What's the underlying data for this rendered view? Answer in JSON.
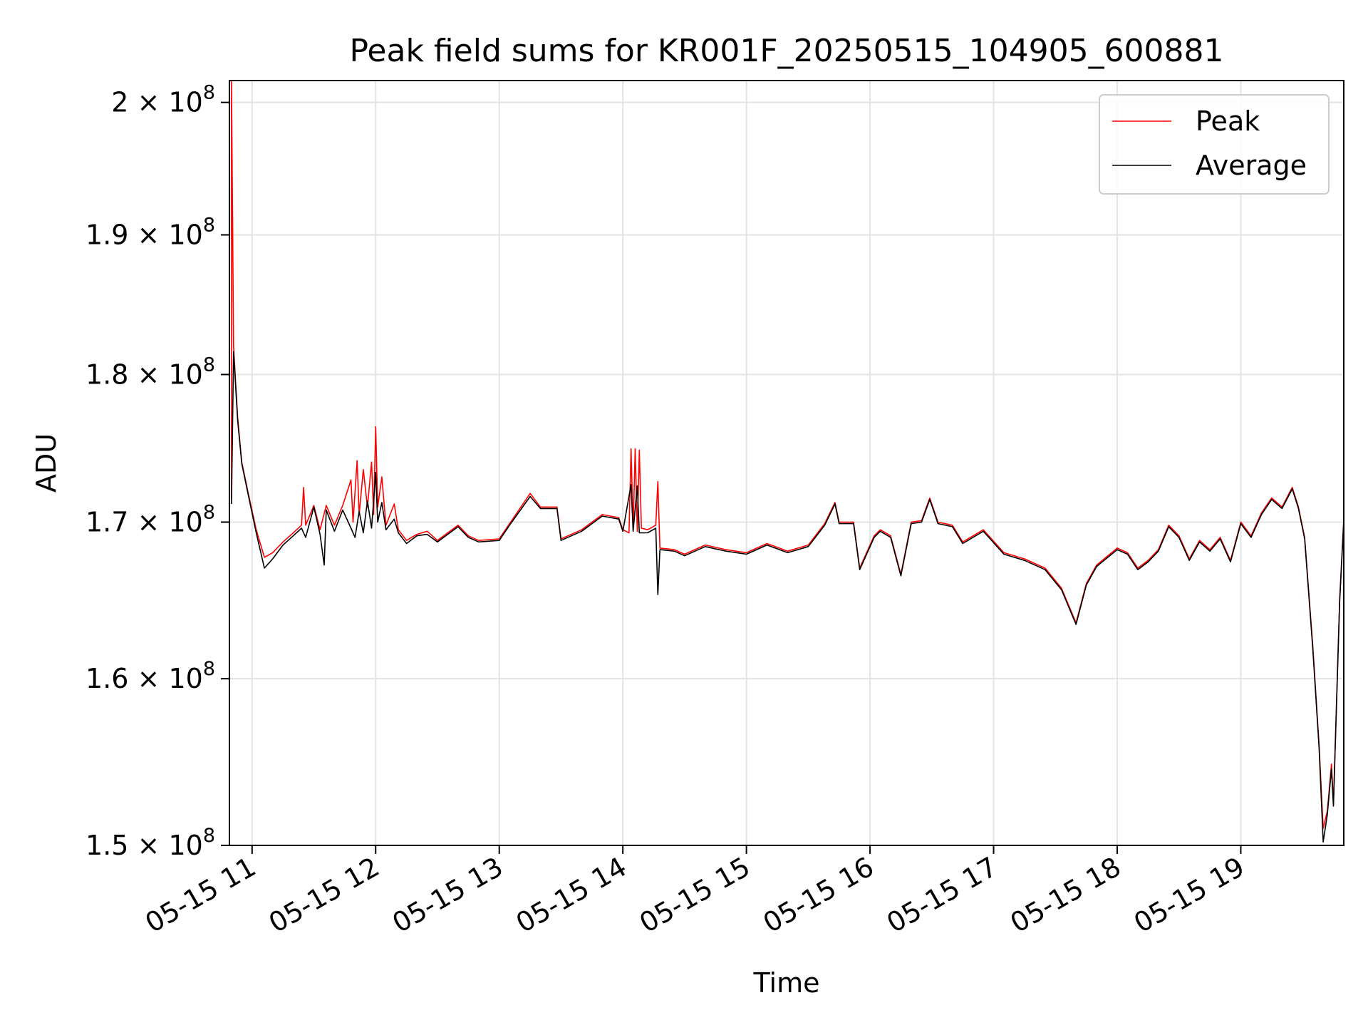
{
  "chart_data": {
    "type": "line",
    "title": "Peak field sums for KR001F_20250515_104905_600881",
    "xlabel": "Time",
    "ylabel": "ADU",
    "yscale": "log",
    "ylim": [
      150000000,
      201700000
    ],
    "xlim": [
      "2025-05-15 10:49",
      "2025-05-15 19:50"
    ],
    "grid": true,
    "legend_position": "top-right",
    "x_ticks": [
      "05-15 11",
      "05-15 12",
      "05-15 13",
      "05-15 14",
      "05-15 15",
      "05-15 16",
      "05-15 17",
      "05-15 18",
      "05-15 19"
    ],
    "y_ticks": [
      {
        "value": 150000000,
        "mantissa": "1.5"
      },
      {
        "value": 160000000,
        "mantissa": "1.6"
      },
      {
        "value": 170000000,
        "mantissa": "1.7"
      },
      {
        "value": 180000000,
        "mantissa": "1.8"
      },
      {
        "value": 190000000,
        "mantissa": "1.9"
      },
      {
        "value": 200000000,
        "mantissa": "2"
      }
    ],
    "y_tick_format": {
      "times": "×",
      "base": "10",
      "exponent": "8"
    },
    "series": [
      {
        "name": "Peak",
        "color": "#ff0000",
        "points": [
          [
            "10:50",
            171500000
          ],
          [
            "10:50",
            201700000
          ],
          [
            "10:51",
            182000000
          ],
          [
            "10:53",
            177000000
          ],
          [
            "10:55",
            174000000
          ],
          [
            "10:58",
            172000000
          ],
          [
            "11:02",
            169500000
          ],
          [
            "11:06",
            167700000
          ],
          [
            "11:10",
            168000000
          ],
          [
            "11:15",
            168700000
          ],
          [
            "11:20",
            169300000
          ],
          [
            "11:24",
            169800000
          ],
          [
            "11:25",
            172300000
          ],
          [
            "11:26",
            169800000
          ],
          [
            "11:30",
            171100000
          ],
          [
            "11:33",
            169500000
          ],
          [
            "11:36",
            171100000
          ],
          [
            "11:40",
            169800000
          ],
          [
            "11:44",
            171100000
          ],
          [
            "11:48",
            172800000
          ],
          [
            "11:49",
            170000000
          ],
          [
            "11:51",
            174100000
          ],
          [
            "11:52",
            170500000
          ],
          [
            "11:54",
            173500000
          ],
          [
            "11:56",
            171000000
          ],
          [
            "11:58",
            174000000
          ],
          [
            "11:59",
            170500000
          ],
          [
            "12:00",
            176400000
          ],
          [
            "12:01",
            171000000
          ],
          [
            "12:03",
            173000000
          ],
          [
            "12:05",
            169800000
          ],
          [
            "12:09",
            171200000
          ],
          [
            "12:11",
            169500000
          ],
          [
            "12:15",
            168800000
          ],
          [
            "12:20",
            169200000
          ],
          [
            "12:25",
            169400000
          ],
          [
            "12:30",
            168800000
          ],
          [
            "12:40",
            169800000
          ],
          [
            "12:45",
            169100000
          ],
          [
            "12:50",
            168800000
          ],
          [
            "13:00",
            168900000
          ],
          [
            "13:05",
            169900000
          ],
          [
            "13:15",
            171900000
          ],
          [
            "13:20",
            171000000
          ],
          [
            "13:28",
            171000000
          ],
          [
            "13:30",
            168900000
          ],
          [
            "13:40",
            169500000
          ],
          [
            "13:50",
            170500000
          ],
          [
            "13:58",
            170300000
          ],
          [
            "14:00",
            169500000
          ],
          [
            "14:03",
            169300000
          ],
          [
            "14:04",
            174900000
          ],
          [
            "14:05",
            169500000
          ],
          [
            "14:06",
            174900000
          ],
          [
            "14:07",
            169400000
          ],
          [
            "14:08",
            174800000
          ],
          [
            "14:09",
            169600000
          ],
          [
            "14:12",
            169500000
          ],
          [
            "14:16",
            169800000
          ],
          [
            "14:17",
            172700000
          ],
          [
            "14:18",
            168300000
          ],
          [
            "14:25",
            168200000
          ],
          [
            "14:30",
            167900000
          ],
          [
            "14:40",
            168500000
          ],
          [
            "14:50",
            168200000
          ],
          [
            "15:00",
            168000000
          ],
          [
            "15:10",
            168600000
          ],
          [
            "15:20",
            168100000
          ],
          [
            "15:30",
            168500000
          ],
          [
            "15:38",
            169900000
          ],
          [
            "15:43",
            171300000
          ],
          [
            "15:45",
            170000000
          ],
          [
            "15:52",
            170000000
          ],
          [
            "15:55",
            167000000
          ],
          [
            "16:02",
            169100000
          ],
          [
            "16:05",
            169500000
          ],
          [
            "16:10",
            169100000
          ],
          [
            "16:15",
            166600000
          ],
          [
            "16:20",
            170000000
          ],
          [
            "16:25",
            170100000
          ],
          [
            "16:29",
            171600000
          ],
          [
            "16:33",
            170000000
          ],
          [
            "16:40",
            169800000
          ],
          [
            "16:45",
            168700000
          ],
          [
            "16:55",
            169500000
          ],
          [
            "17:05",
            168000000
          ],
          [
            "17:15",
            167600000
          ],
          [
            "17:25",
            167000000
          ],
          [
            "17:33",
            165700000
          ],
          [
            "17:40",
            163500000
          ],
          [
            "17:45",
            166000000
          ],
          [
            "17:50",
            167200000
          ],
          [
            "18:00",
            168300000
          ],
          [
            "18:05",
            168000000
          ],
          [
            "18:10",
            167000000
          ],
          [
            "18:15",
            167500000
          ],
          [
            "18:20",
            168200000
          ],
          [
            "18:25",
            169800000
          ],
          [
            "18:30",
            169100000
          ],
          [
            "18:35",
            167600000
          ],
          [
            "18:40",
            168800000
          ],
          [
            "18:45",
            168200000
          ],
          [
            "18:50",
            169000000
          ],
          [
            "18:55",
            167500000
          ],
          [
            "19:00",
            170000000
          ],
          [
            "19:05",
            169100000
          ],
          [
            "19:10",
            170600000
          ],
          [
            "19:15",
            171600000
          ],
          [
            "19:20",
            171000000
          ],
          [
            "19:25",
            172300000
          ],
          [
            "19:28",
            171000000
          ],
          [
            "19:31",
            169000000
          ],
          [
            "19:35",
            162000000
          ],
          [
            "19:38",
            156000000
          ],
          [
            "19:40",
            151000000
          ],
          [
            "19:42",
            152000000
          ],
          [
            "19:44",
            154800000
          ],
          [
            "19:45",
            152500000
          ],
          [
            "19:48",
            165000000
          ],
          [
            "19:50",
            170200000
          ]
        ]
      },
      {
        "name": "Average",
        "color": "#000000",
        "points": [
          [
            "10:50",
            171200000
          ],
          [
            "10:51",
            181600000
          ],
          [
            "10:53",
            176800000
          ],
          [
            "10:55",
            173900000
          ],
          [
            "10:58",
            171900000
          ],
          [
            "11:02",
            169300000
          ],
          [
            "11:06",
            167000000
          ],
          [
            "11:10",
            167600000
          ],
          [
            "11:15",
            168500000
          ],
          [
            "11:20",
            169100000
          ],
          [
            "11:24",
            169600000
          ],
          [
            "11:26",
            169000000
          ],
          [
            "11:30",
            171000000
          ],
          [
            "11:33",
            169200000
          ],
          [
            "11:35",
            167200000
          ],
          [
            "11:36",
            170800000
          ],
          [
            "11:40",
            169400000
          ],
          [
            "11:44",
            170800000
          ],
          [
            "11:48",
            169600000
          ],
          [
            "11:50",
            169000000
          ],
          [
            "11:52",
            170700000
          ],
          [
            "11:54",
            169300000
          ],
          [
            "11:56",
            171400000
          ],
          [
            "11:58",
            169600000
          ],
          [
            "12:00",
            173300000
          ],
          [
            "12:01",
            170000000
          ],
          [
            "12:03",
            171300000
          ],
          [
            "12:05",
            169500000
          ],
          [
            "12:09",
            170200000
          ],
          [
            "12:11",
            169300000
          ],
          [
            "12:15",
            168600000
          ],
          [
            "12:20",
            169100000
          ],
          [
            "12:25",
            169200000
          ],
          [
            "12:30",
            168700000
          ],
          [
            "12:40",
            169700000
          ],
          [
            "12:45",
            169000000
          ],
          [
            "12:50",
            168700000
          ],
          [
            "13:00",
            168800000
          ],
          [
            "13:05",
            169800000
          ],
          [
            "13:15",
            171700000
          ],
          [
            "13:20",
            170900000
          ],
          [
            "13:28",
            170900000
          ],
          [
            "13:30",
            168800000
          ],
          [
            "13:40",
            169400000
          ],
          [
            "13:50",
            170400000
          ],
          [
            "13:58",
            170200000
          ],
          [
            "14:00",
            169400000
          ],
          [
            "14:04",
            172500000
          ],
          [
            "14:05",
            169400000
          ],
          [
            "14:07",
            172400000
          ],
          [
            "14:08",
            169300000
          ],
          [
            "14:12",
            169300000
          ],
          [
            "14:16",
            169600000
          ],
          [
            "14:17",
            165300000
          ],
          [
            "14:18",
            168200000
          ],
          [
            "14:25",
            168100000
          ],
          [
            "14:30",
            167800000
          ],
          [
            "14:40",
            168400000
          ],
          [
            "14:50",
            168100000
          ],
          [
            "15:00",
            167900000
          ],
          [
            "15:10",
            168500000
          ],
          [
            "15:20",
            168000000
          ],
          [
            "15:30",
            168400000
          ],
          [
            "15:38",
            169800000
          ],
          [
            "15:43",
            171200000
          ],
          [
            "15:45",
            169900000
          ],
          [
            "15:52",
            169900000
          ],
          [
            "15:55",
            166900000
          ],
          [
            "16:02",
            169000000
          ],
          [
            "16:05",
            169400000
          ],
          [
            "16:10",
            169000000
          ],
          [
            "16:15",
            166500000
          ],
          [
            "16:20",
            169900000
          ],
          [
            "16:25",
            170000000
          ],
          [
            "16:29",
            171500000
          ],
          [
            "16:33",
            169900000
          ],
          [
            "16:40",
            169700000
          ],
          [
            "16:45",
            168600000
          ],
          [
            "16:55",
            169400000
          ],
          [
            "17:05",
            167900000
          ],
          [
            "17:15",
            167500000
          ],
          [
            "17:25",
            166900000
          ],
          [
            "17:33",
            165600000
          ],
          [
            "17:40",
            163400000
          ],
          [
            "17:45",
            165900000
          ],
          [
            "17:50",
            167100000
          ],
          [
            "18:00",
            168200000
          ],
          [
            "18:05",
            167900000
          ],
          [
            "18:10",
            166900000
          ],
          [
            "18:15",
            167400000
          ],
          [
            "18:20",
            168100000
          ],
          [
            "18:25",
            169700000
          ],
          [
            "18:30",
            169000000
          ],
          [
            "18:35",
            167500000
          ],
          [
            "18:40",
            168700000
          ],
          [
            "18:45",
            168100000
          ],
          [
            "18:50",
            168900000
          ],
          [
            "18:55",
            167400000
          ],
          [
            "19:00",
            169900000
          ],
          [
            "19:05",
            169000000
          ],
          [
            "19:10",
            170500000
          ],
          [
            "19:15",
            171500000
          ],
          [
            "19:20",
            170900000
          ],
          [
            "19:25",
            172200000
          ],
          [
            "19:28",
            170900000
          ],
          [
            "19:31",
            168900000
          ],
          [
            "19:35",
            161800000
          ],
          [
            "19:38",
            155800000
          ],
          [
            "19:40",
            150200000
          ],
          [
            "19:42",
            151800000
          ],
          [
            "19:44",
            154500000
          ],
          [
            "19:45",
            152300000
          ],
          [
            "19:48",
            164800000
          ],
          [
            "19:50",
            170100000
          ]
        ]
      }
    ]
  }
}
